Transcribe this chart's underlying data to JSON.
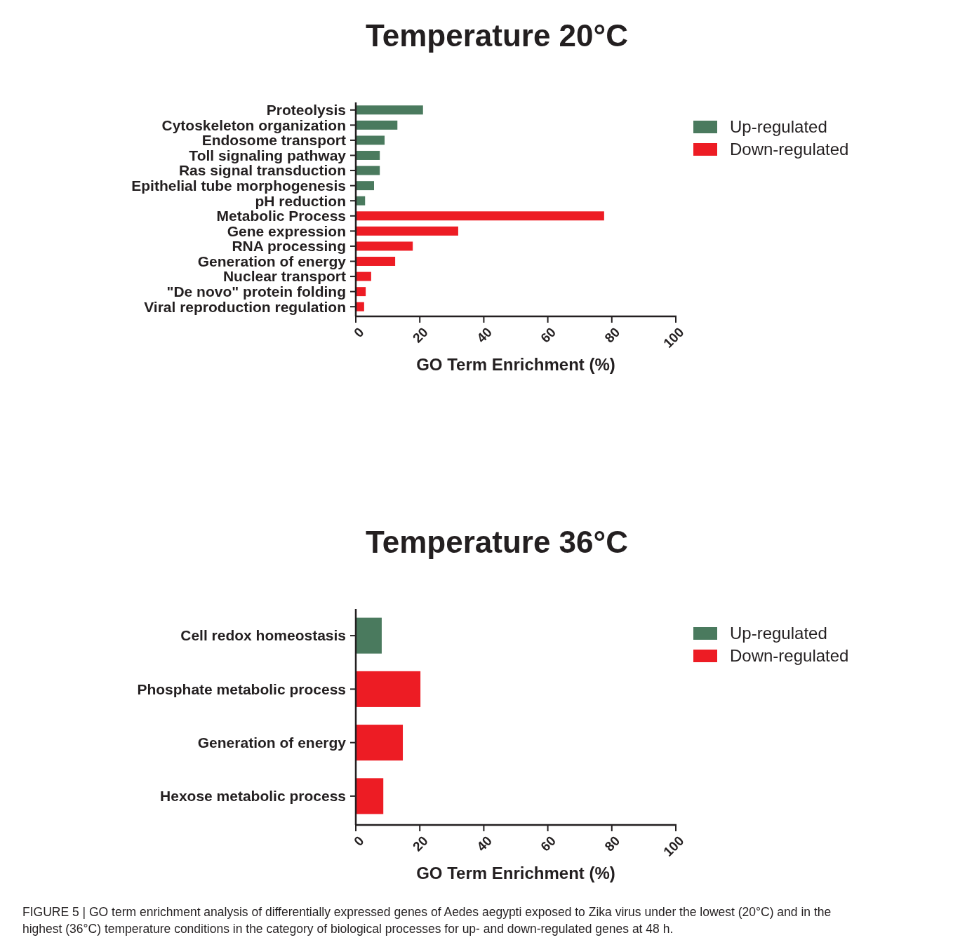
{
  "chart_data": [
    {
      "type": "bar",
      "title": "Temperature 20°C",
      "orientation": "horizontal",
      "stacked": true,
      "xlabel": "GO Term Enrichment (%)",
      "categories": [
        "Proteolysis",
        "Cytoskeleton organization",
        "Endosome transport",
        "Toll signaling pathway",
        "Ras signal transduction",
        "Epithelial tube morphogenesis",
        "pH reduction",
        "Metabolic Process",
        "Gene expression",
        "RNA processing",
        "Generation of energy",
        "Nuclear transport",
        "\"De novo\" protein folding",
        "Viral reproduction regulation"
      ],
      "series": [
        {
          "name": "Up-regulated",
          "color": "#4a7a5e",
          "values": [
            21,
            13,
            9,
            7.5,
            7.5,
            5.7,
            2.9,
            null,
            null,
            null,
            null,
            null,
            null,
            null
          ]
        },
        {
          "name": "Down-regulated",
          "color": "#ed1c24",
          "values": [
            null,
            null,
            null,
            null,
            null,
            null,
            null,
            77.6,
            32,
            17.8,
            12.3,
            4.8,
            3.1,
            2.6
          ]
        }
      ],
      "xlim": [
        0,
        100
      ],
      "xticks": [
        0,
        20,
        40,
        60,
        80,
        100
      ],
      "grid": false,
      "legend": "right"
    },
    {
      "type": "bar",
      "title": "Temperature 36°C",
      "orientation": "horizontal",
      "stacked": true,
      "xlabel": "GO Term Enrichment (%)",
      "categories": [
        "Cell redox homeostasis",
        "Phosphate metabolic process",
        "Generation of energy",
        "Hexose metabolic process"
      ],
      "series": [
        {
          "name": "Up-regulated",
          "color": "#4a7a5e",
          "values": [
            8.1,
            null,
            null,
            null
          ]
        },
        {
          "name": "Down-regulated",
          "color": "#ed1c24",
          "values": [
            null,
            20.2,
            14.7,
            8.6
          ]
        }
      ],
      "xlim": [
        0,
        100
      ],
      "xticks": [
        0,
        20,
        40,
        60,
        80,
        100
      ],
      "grid": false,
      "legend": "right",
      "annotations": [
        "FIGURE 5 | GO term enrichment analysis of differentially expressed genes of Aedes aegypti exposed to Zika virus under the lowest (20°C) and in the highest (36°C) temperature conditions in the category of biological processes for up- and down-regulated genes at 48 h."
      ]
    }
  ]
}
